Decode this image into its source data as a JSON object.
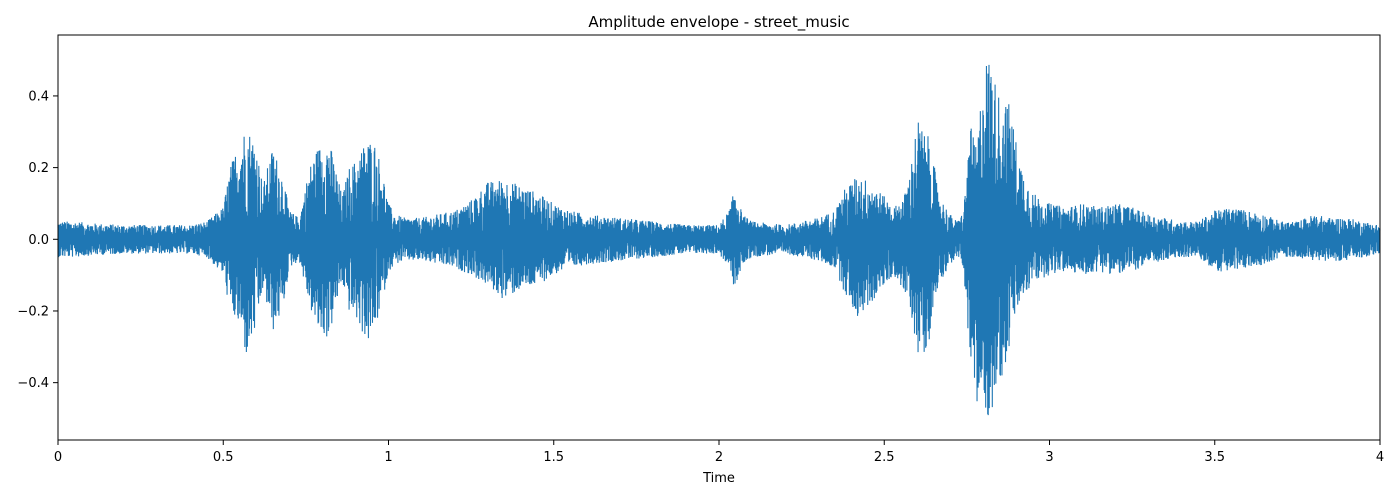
{
  "chart_data": {
    "type": "line",
    "title": "Amplitude envelope - street_music",
    "xlabel": "Time",
    "ylabel": "",
    "xlim": [
      0,
      4
    ],
    "ylim": [
      -0.56,
      0.57
    ],
    "x_ticks": [
      0,
      0.5,
      1,
      1.5,
      2,
      2.5,
      3,
      3.5,
      4
    ],
    "x_tick_labels": [
      "0",
      "0.5",
      "1",
      "1.5",
      "2",
      "2.5",
      "3",
      "3.5",
      "4"
    ],
    "y_ticks": [
      -0.4,
      -0.2,
      0.0,
      0.2,
      0.4
    ],
    "y_tick_labels": [
      "−0.4",
      "−0.2",
      "0.0",
      "0.2",
      "0.4"
    ],
    "grid": false,
    "series": [
      {
        "color": "#1f77b4",
        "envelope": {
          "x": [
            0,
            0.05,
            0.1,
            0.2,
            0.3,
            0.4,
            0.45,
            0.5,
            0.52,
            0.55,
            0.57,
            0.6,
            0.62,
            0.65,
            0.68,
            0.7,
            0.73,
            0.76,
            0.78,
            0.8,
            0.82,
            0.84,
            0.86,
            0.88,
            0.9,
            0.92,
            0.94,
            0.96,
            0.98,
            1.0,
            1.02,
            1.05,
            1.1,
            1.15,
            1.2,
            1.25,
            1.3,
            1.35,
            1.4,
            1.45,
            1.5,
            1.55,
            1.6,
            1.7,
            1.8,
            1.9,
            2.0,
            2.03,
            2.05,
            2.07,
            2.1,
            2.2,
            2.3,
            2.35,
            2.38,
            2.42,
            2.46,
            2.5,
            2.53,
            2.56,
            2.58,
            2.6,
            2.62,
            2.64,
            2.66,
            2.68,
            2.7,
            2.72,
            2.74,
            2.76,
            2.78,
            2.8,
            2.82,
            2.84,
            2.86,
            2.88,
            2.9,
            2.92,
            2.95,
            3.0,
            3.05,
            3.1,
            3.15,
            3.2,
            3.25,
            3.3,
            3.35,
            3.4,
            3.45,
            3.5,
            3.55,
            3.6,
            3.65,
            3.7,
            3.75,
            3.8,
            3.85,
            3.9,
            3.95,
            4.0
          ],
          "upper": [
            0.05,
            0.05,
            0.045,
            0.04,
            0.04,
            0.04,
            0.05,
            0.09,
            0.2,
            0.28,
            0.32,
            0.27,
            0.15,
            0.26,
            0.18,
            0.08,
            0.06,
            0.2,
            0.25,
            0.27,
            0.28,
            0.2,
            0.12,
            0.2,
            0.22,
            0.26,
            0.28,
            0.27,
            0.2,
            0.1,
            0.07,
            0.06,
            0.06,
            0.07,
            0.08,
            0.11,
            0.16,
            0.17,
            0.15,
            0.13,
            0.1,
            0.08,
            0.07,
            0.06,
            0.05,
            0.04,
            0.04,
            0.08,
            0.15,
            0.07,
            0.05,
            0.04,
            0.06,
            0.08,
            0.14,
            0.18,
            0.16,
            0.12,
            0.09,
            0.12,
            0.2,
            0.34,
            0.3,
            0.28,
            0.15,
            0.1,
            0.07,
            0.05,
            0.08,
            0.32,
            0.25,
            0.49,
            0.52,
            0.42,
            0.39,
            0.38,
            0.27,
            0.19,
            0.13,
            0.1,
            0.09,
            0.1,
            0.09,
            0.1,
            0.09,
            0.07,
            0.06,
            0.05,
            0.05,
            0.08,
            0.09,
            0.08,
            0.07,
            0.05,
            0.05,
            0.07,
            0.06,
            0.06,
            0.05,
            0.04
          ],
          "lower": [
            -0.05,
            -0.05,
            -0.045,
            -0.04,
            -0.04,
            -0.04,
            -0.05,
            -0.1,
            -0.2,
            -0.25,
            -0.33,
            -0.25,
            -0.14,
            -0.26,
            -0.2,
            -0.08,
            -0.06,
            -0.18,
            -0.25,
            -0.27,
            -0.28,
            -0.19,
            -0.12,
            -0.2,
            -0.22,
            -0.26,
            -0.29,
            -0.25,
            -0.18,
            -0.09,
            -0.07,
            -0.06,
            -0.06,
            -0.07,
            -0.08,
            -0.1,
            -0.13,
            -0.17,
            -0.14,
            -0.13,
            -0.1,
            -0.08,
            -0.07,
            -0.06,
            -0.05,
            -0.04,
            -0.04,
            -0.08,
            -0.15,
            -0.07,
            -0.05,
            -0.04,
            -0.06,
            -0.08,
            -0.15,
            -0.22,
            -0.18,
            -0.13,
            -0.1,
            -0.15,
            -0.2,
            -0.32,
            -0.32,
            -0.27,
            -0.14,
            -0.1,
            -0.07,
            -0.05,
            -0.08,
            -0.35,
            -0.49,
            -0.45,
            -0.52,
            -0.41,
            -0.38,
            -0.3,
            -0.2,
            -0.17,
            -0.12,
            -0.1,
            -0.09,
            -0.1,
            -0.09,
            -0.1,
            -0.09,
            -0.07,
            -0.06,
            -0.05,
            -0.05,
            -0.09,
            -0.09,
            -0.08,
            -0.07,
            -0.05,
            -0.05,
            -0.06,
            -0.06,
            -0.06,
            -0.05,
            -0.04
          ]
        }
      }
    ]
  }
}
